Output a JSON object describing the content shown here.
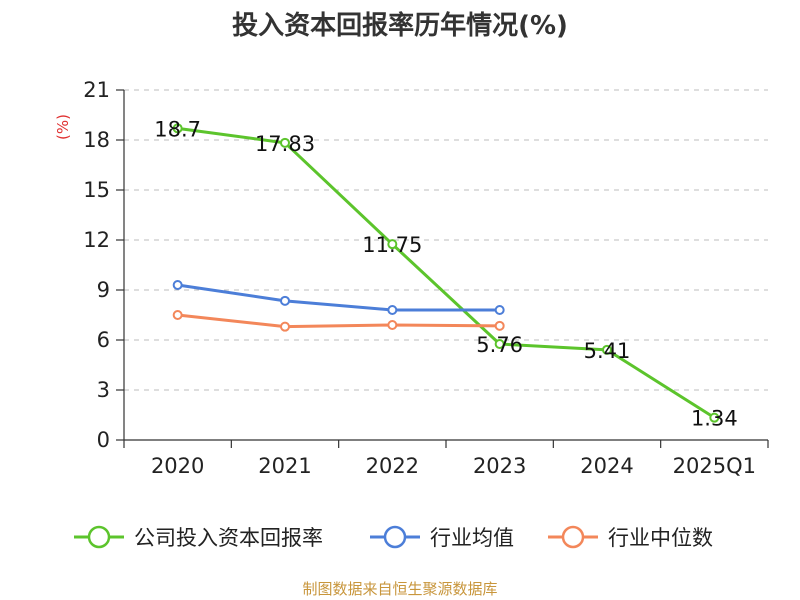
{
  "chart_data": {
    "type": "line",
    "title": "投入资本回报率历年情况(%)",
    "unit_label": "(%)",
    "categories": [
      "2020",
      "2021",
      "2022",
      "2023",
      "2024",
      "2025Q1"
    ],
    "ylim": [
      0,
      21
    ],
    "yticks": [
      0,
      3,
      6,
      9,
      12,
      15,
      18,
      21
    ],
    "grid": true,
    "legend_position": "bottom",
    "series": [
      {
        "name": "公司投入资本回报率",
        "color": "#5cc42c",
        "values": [
          18.7,
          17.83,
          11.75,
          5.76,
          5.41,
          1.34
        ],
        "labels": [
          "18.7",
          "17.83",
          "11.75",
          "5.76",
          "5.41",
          "1.34"
        ]
      },
      {
        "name": "行业均值",
        "color": "#4c7ed8",
        "values": [
          9.3,
          8.35,
          7.8,
          7.8,
          null,
          null
        ]
      },
      {
        "name": "行业中位数",
        "color": "#f3875a",
        "values": [
          7.5,
          6.8,
          6.9,
          6.85,
          null,
          null
        ]
      }
    ],
    "unit_color": "#e03030",
    "source": "制图数据来自恒生聚源数据库",
    "source_color": "#c8963c"
  }
}
